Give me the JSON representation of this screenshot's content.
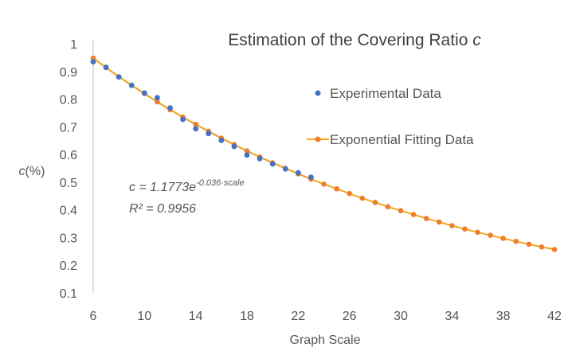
{
  "chart_data": {
    "type": "scatter",
    "title_main": "Estimation of the Covering Ratio ",
    "title_var": "c",
    "xlabel": "Graph Scale",
    "ylabel": "c(%)",
    "xlim": [
      6,
      42
    ],
    "ylim": [
      0.1,
      1.0
    ],
    "x_ticks": [
      6,
      10,
      14,
      18,
      22,
      26,
      30,
      34,
      38,
      42
    ],
    "y_ticks": [
      "0.1",
      "0.2",
      "0.3",
      "0.4",
      "0.5",
      "0.6",
      "0.7",
      "0.8",
      "0.9",
      "1"
    ],
    "series": [
      {
        "name": "Experimental Data",
        "color": "#4472C4",
        "style": "markers",
        "x": [
          6,
          7,
          8,
          9,
          10,
          11,
          12,
          13,
          14,
          15,
          16,
          17,
          18,
          19,
          20,
          21,
          22,
          23
        ],
        "y": [
          0.935,
          0.915,
          0.88,
          0.85,
          0.822,
          0.805,
          0.768,
          0.727,
          0.693,
          0.676,
          0.651,
          0.629,
          0.598,
          0.585,
          0.566,
          0.548,
          0.534,
          0.518
        ]
      },
      {
        "name": "Exponential Fitting Data",
        "color": "#F4A61C",
        "marker_color": "#ED7D31",
        "style": "line-markers",
        "x": [
          6,
          7,
          8,
          9,
          10,
          11,
          12,
          13,
          14,
          15,
          16,
          17,
          18,
          19,
          20,
          21,
          22,
          23,
          24,
          25,
          26,
          27,
          28,
          29,
          30,
          31,
          32,
          33,
          34,
          35,
          36,
          37,
          38,
          39,
          40,
          41,
          42
        ],
        "y": [
          0.948,
          0.914,
          0.881,
          0.85,
          0.82,
          0.79,
          0.762,
          0.735,
          0.709,
          0.684,
          0.659,
          0.636,
          0.613,
          0.591,
          0.57,
          0.55,
          0.53,
          0.511,
          0.493,
          0.476,
          0.459,
          0.442,
          0.427,
          0.411,
          0.397,
          0.383,
          0.369,
          0.356,
          0.343,
          0.331,
          0.319,
          0.308,
          0.297,
          0.286,
          0.276,
          0.266,
          0.257
        ]
      }
    ],
    "trendline": {
      "color": "#4472C4",
      "style": "dotted",
      "x_range": [
        6,
        23
      ]
    },
    "equation": {
      "lhs": "c = 1.1773e",
      "exponent": "-0.036·scale",
      "r2": "R² = 0.9956"
    }
  }
}
